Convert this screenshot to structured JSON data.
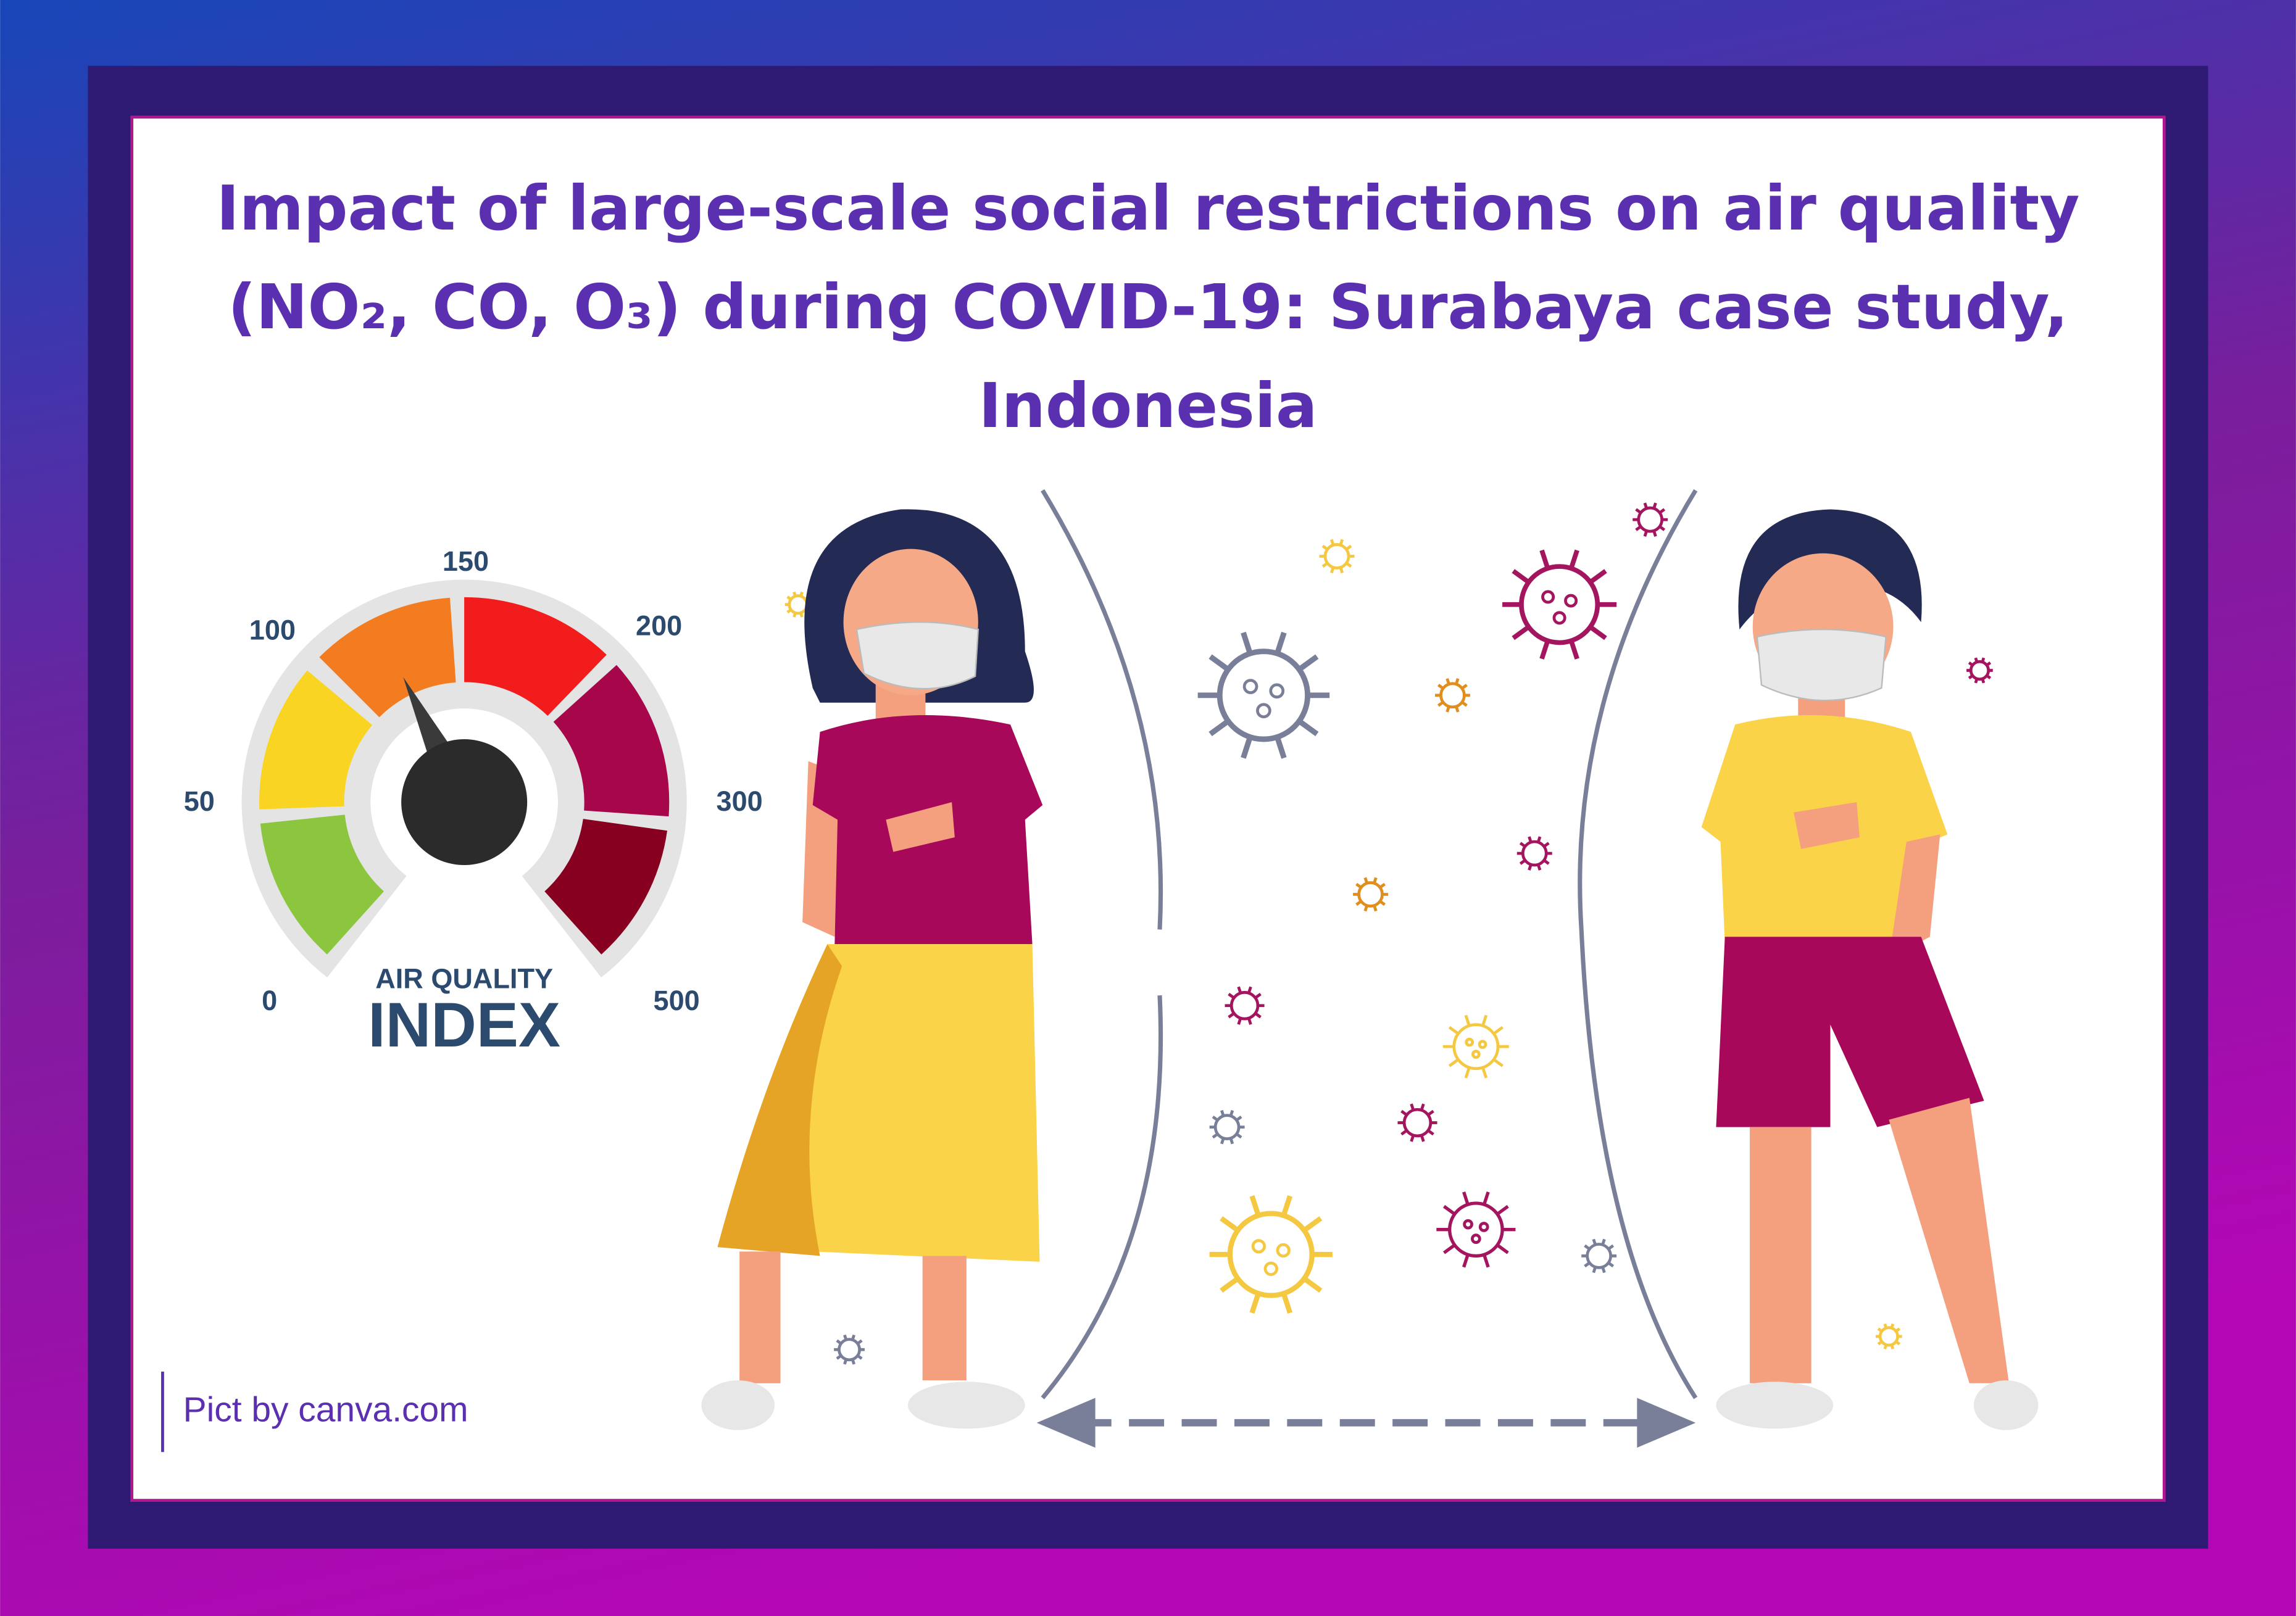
{
  "header": {
    "title": "Impact of large-scale social restrictions on air quality (NO₂, CO, O₃) during COVID-19: Surabaya case study, Indonesia"
  },
  "gauge": {
    "labels": [
      "0",
      "50",
      "100",
      "150",
      "200",
      "300",
      "500"
    ],
    "caption": "AIR QUALITY",
    "name": "INDEX"
  },
  "credit": "Pict by canva.com"
}
